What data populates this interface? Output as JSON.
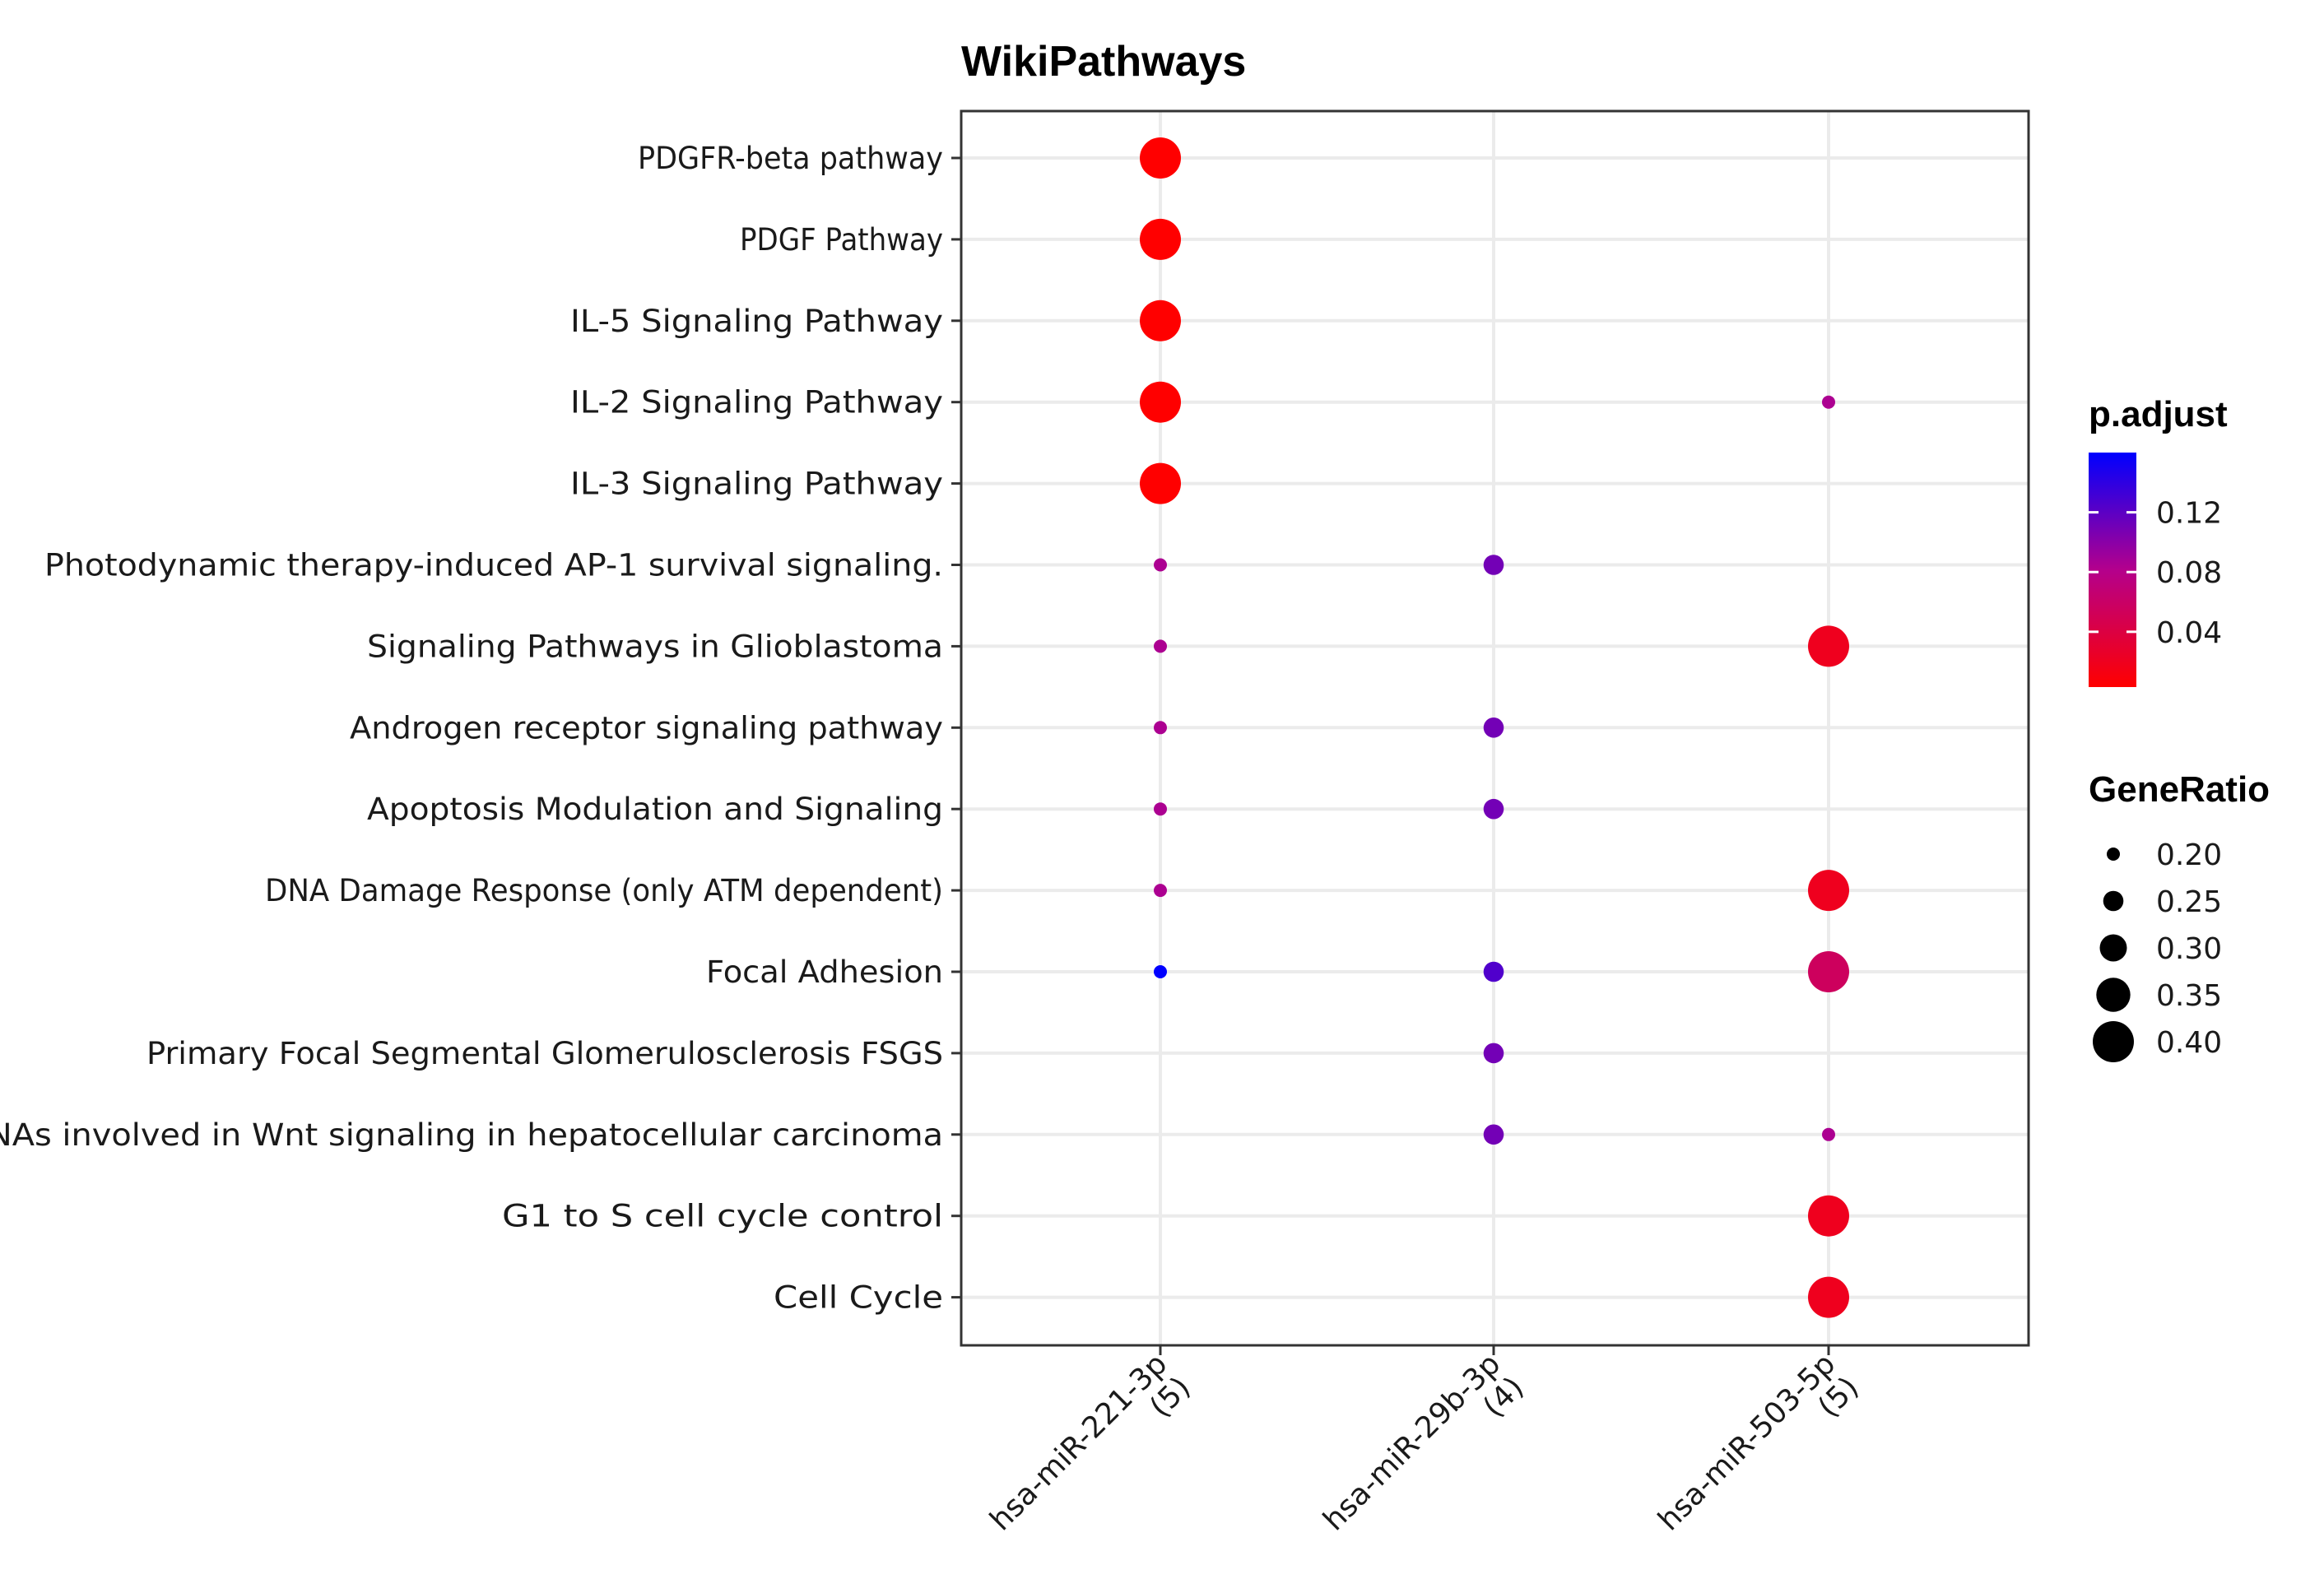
{
  "chart_data": {
    "type": "scatter",
    "title": "WikiPathways",
    "xlabel": "",
    "ylabel": "",
    "x_categories": [
      {
        "name": "hsa-miR-221-3p",
        "count": "(5)"
      },
      {
        "name": "hsa-miR-29b-3p",
        "count": "(4)"
      },
      {
        "name": "hsa-miR-503-5p",
        "count": "(5)"
      }
    ],
    "y_categories": [
      "PDGFR-beta pathway",
      "PDGF Pathway",
      "IL-5 Signaling Pathway",
      "IL-2 Signaling Pathway",
      "IL-3 Signaling Pathway",
      "Photodynamic therapy-induced AP-1 survival signaling.",
      "Signaling Pathways in Glioblastoma",
      "Androgen receptor signaling pathway",
      "Apoptosis Modulation and Signaling",
      "DNA Damage Response (only ATM dependent)",
      "Focal Adhesion",
      "Primary Focal Segmental Glomerulosclerosis FSGS",
      "ncRNAs involved in Wnt signaling in hepatocellular carcinoma",
      "G1 to S cell cycle control",
      "Cell Cycle"
    ],
    "points": [
      {
        "x": 0,
        "y": 0,
        "gene_ratio": 0.4,
        "p_adjust": 0.003
      },
      {
        "x": 0,
        "y": 1,
        "gene_ratio": 0.4,
        "p_adjust": 0.003
      },
      {
        "x": 0,
        "y": 2,
        "gene_ratio": 0.4,
        "p_adjust": 0.003
      },
      {
        "x": 0,
        "y": 3,
        "gene_ratio": 0.4,
        "p_adjust": 0.003
      },
      {
        "x": 0,
        "y": 4,
        "gene_ratio": 0.4,
        "p_adjust": 0.003
      },
      {
        "x": 0,
        "y": 5,
        "gene_ratio": 0.2,
        "p_adjust": 0.085
      },
      {
        "x": 0,
        "y": 6,
        "gene_ratio": 0.2,
        "p_adjust": 0.085
      },
      {
        "x": 0,
        "y": 7,
        "gene_ratio": 0.2,
        "p_adjust": 0.085
      },
      {
        "x": 0,
        "y": 8,
        "gene_ratio": 0.2,
        "p_adjust": 0.085
      },
      {
        "x": 0,
        "y": 9,
        "gene_ratio": 0.2,
        "p_adjust": 0.085
      },
      {
        "x": 0,
        "y": 10,
        "gene_ratio": 0.2,
        "p_adjust": 0.16
      },
      {
        "x": 1,
        "y": 5,
        "gene_ratio": 0.25,
        "p_adjust": 0.11
      },
      {
        "x": 1,
        "y": 7,
        "gene_ratio": 0.25,
        "p_adjust": 0.11
      },
      {
        "x": 1,
        "y": 8,
        "gene_ratio": 0.25,
        "p_adjust": 0.11
      },
      {
        "x": 1,
        "y": 10,
        "gene_ratio": 0.25,
        "p_adjust": 0.125
      },
      {
        "x": 1,
        "y": 11,
        "gene_ratio": 0.25,
        "p_adjust": 0.11
      },
      {
        "x": 1,
        "y": 12,
        "gene_ratio": 0.25,
        "p_adjust": 0.11
      },
      {
        "x": 2,
        "y": 3,
        "gene_ratio": 0.2,
        "p_adjust": 0.085
      },
      {
        "x": 2,
        "y": 6,
        "gene_ratio": 0.4,
        "p_adjust": 0.02
      },
      {
        "x": 2,
        "y": 9,
        "gene_ratio": 0.4,
        "p_adjust": 0.02
      },
      {
        "x": 2,
        "y": 10,
        "gene_ratio": 0.4,
        "p_adjust": 0.055
      },
      {
        "x": 2,
        "y": 12,
        "gene_ratio": 0.2,
        "p_adjust": 0.085
      },
      {
        "x": 2,
        "y": 13,
        "gene_ratio": 0.4,
        "p_adjust": 0.02
      },
      {
        "x": 2,
        "y": 14,
        "gene_ratio": 0.4,
        "p_adjust": 0.02
      }
    ],
    "color_legend": {
      "title": "p.adjust",
      "range": [
        0.003,
        0.16
      ],
      "ticks": [
        0.04,
        0.08,
        0.12
      ],
      "tick_labels": [
        "0.04",
        "0.08",
        "0.12"
      ],
      "low_color": "#ff0000",
      "mid_color": "#b4008c",
      "high_color": "#0000ff"
    },
    "size_legend": {
      "title": "GeneRatio",
      "values": [
        0.2,
        0.25,
        0.3,
        0.35,
        0.4
      ],
      "labels": [
        "0.20",
        "0.25",
        "0.30",
        "0.35",
        "0.40"
      ]
    },
    "grid": true,
    "legend_position": "right"
  }
}
